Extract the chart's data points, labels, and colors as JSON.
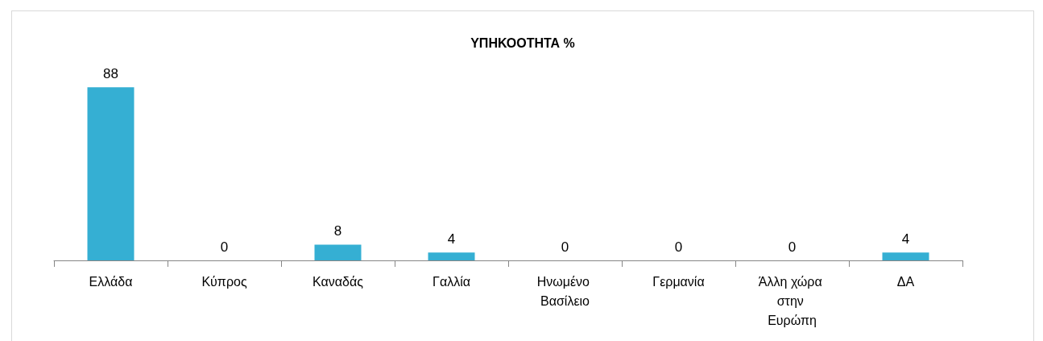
{
  "chart_data": {
    "type": "bar",
    "title": "ΥΠΗΚΟΟΤΗΤΑ %",
    "categories": [
      "Ελλάδα",
      "Κύπρος",
      "Καναδάς",
      "Γαλλία",
      "Ηνωμένο Βασίλειο",
      "Γερμανία",
      "Άλλη χώρα στην Ευρώπη",
      "ΔΑ"
    ],
    "values": [
      88,
      0,
      8,
      4,
      0,
      0,
      0,
      4
    ],
    "color": "#35afd3",
    "data_labels": true
  }
}
